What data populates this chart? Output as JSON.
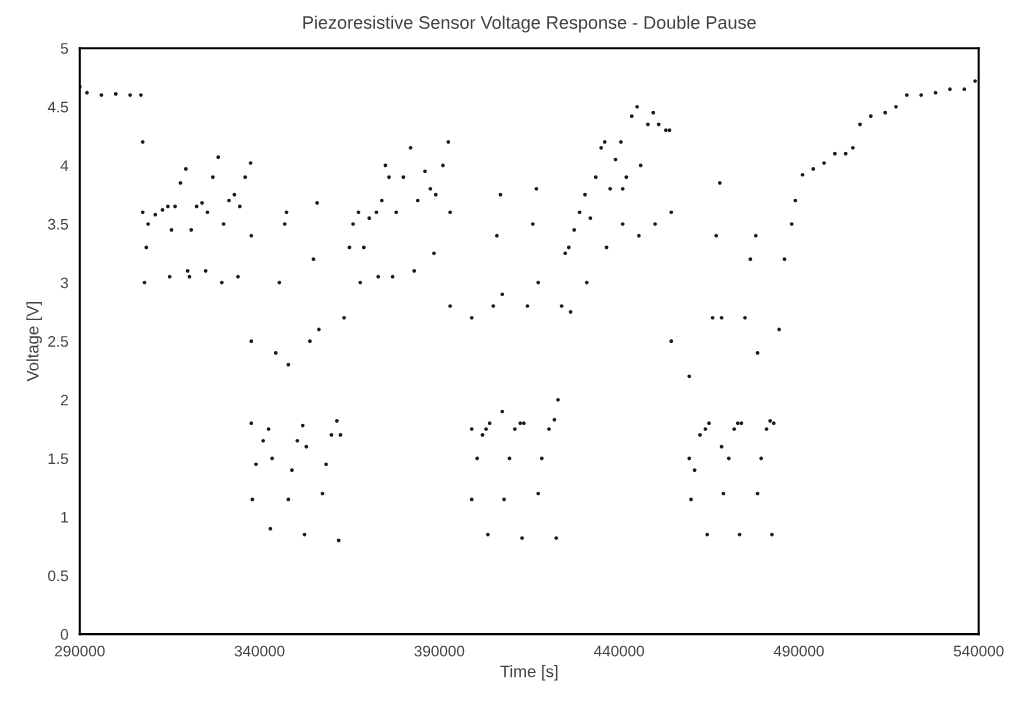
{
  "chart_data": {
    "type": "scatter",
    "title": "Piezoresistive Sensor Voltage Response - Double Pause",
    "xlabel": "Time [s]",
    "ylabel": "Voltage [V]",
    "xlim": [
      290000,
      540000
    ],
    "xticks": [
      290000,
      340000,
      390000,
      440000,
      490000,
      540000
    ],
    "ylim": [
      0,
      5
    ],
    "yticks": [
      0,
      0.5,
      1,
      1.5,
      2,
      2.5,
      3,
      3.5,
      4,
      4.5,
      5
    ],
    "grid": false,
    "marker": "circle",
    "series": [
      {
        "color": "#1a1a1a",
        "x": [
          290000,
          292000,
          296000,
          300000,
          304000,
          307000,
          307500,
          307500,
          308000,
          308500,
          309000,
          311000,
          313000,
          314500,
          315000,
          315500,
          316500,
          318000,
          319500,
          320000,
          320500,
          321000,
          322500,
          324000,
          325000,
          325500,
          327000,
          328500,
          329500,
          330000,
          331500,
          333000,
          334000,
          334500,
          336000,
          337500,
          337700,
          337700,
          337700,
          338000,
          339000,
          341000,
          342500,
          343000,
          343500,
          344500,
          345500,
          347000,
          347500,
          348000,
          348000,
          349000,
          350500,
          352000,
          352500,
          353000,
          354000,
          355000,
          356000,
          356500,
          357500,
          358500,
          360000,
          361500,
          362000,
          362500,
          363500,
          365000,
          366000,
          367500,
          368000,
          369000,
          370500,
          372500,
          373000,
          374000,
          375000,
          376000,
          377000,
          378000,
          380000,
          382000,
          383000,
          384000,
          386000,
          387500,
          388500,
          389000,
          391000,
          392500,
          393000,
          393000,
          399000,
          399000,
          399000,
          400500,
          402000,
          403000,
          403500,
          404000,
          405000,
          406000,
          407000,
          407500,
          407500,
          408000,
          409500,
          411000,
          412500,
          413000,
          413500,
          414500,
          416000,
          417000,
          417500,
          417500,
          418500,
          420500,
          422000,
          422500,
          423000,
          424000,
          425000,
          426000,
          426500,
          427500,
          429000,
          430500,
          431000,
          432000,
          433500,
          435000,
          436000,
          436500,
          437500,
          439000,
          440500,
          441000,
          441000,
          442000,
          443500,
          445000,
          445500,
          446000,
          448000,
          449500,
          450000,
          451000,
          453000,
          454000,
          454500,
          454500,
          459500,
          459500,
          460000,
          461000,
          462500,
          464000,
          464500,
          465000,
          466000,
          467000,
          468000,
          468500,
          468500,
          469000,
          470500,
          472000,
          473000,
          473500,
          474000,
          475000,
          476500,
          478000,
          478500,
          478500,
          479500,
          481000,
          482000,
          482500,
          483000,
          484500,
          486000,
          488000,
          489000,
          491000,
          494000,
          497000,
          500000,
          503000,
          505000,
          507000,
          510000,
          514000,
          517000,
          520000,
          524000,
          528000,
          532000,
          536000,
          539000
        ],
        "values": [
          4.67,
          4.62,
          4.6,
          4.61,
          4.6,
          4.6,
          4.2,
          3.6,
          3.0,
          3.3,
          3.5,
          3.58,
          3.62,
          3.65,
          3.05,
          3.45,
          3.65,
          3.85,
          3.97,
          3.1,
          3.05,
          3.45,
          3.65,
          3.68,
          3.1,
          3.6,
          3.9,
          4.07,
          3.0,
          3.5,
          3.7,
          3.75,
          3.05,
          3.65,
          3.9,
          4.02,
          3.4,
          2.5,
          1.8,
          1.15,
          1.45,
          1.65,
          1.75,
          0.9,
          1.5,
          2.4,
          3.0,
          3.5,
          3.6,
          2.3,
          1.15,
          1.4,
          1.65,
          1.78,
          0.85,
          1.6,
          2.5,
          3.2,
          3.68,
          2.6,
          1.2,
          1.45,
          1.7,
          1.82,
          0.8,
          1.7,
          2.7,
          3.3,
          3.5,
          3.6,
          3.0,
          3.3,
          3.55,
          3.6,
          3.05,
          3.7,
          4.0,
          3.9,
          3.05,
          3.6,
          3.9,
          4.15,
          3.1,
          3.7,
          3.95,
          3.8,
          3.25,
          3.75,
          4.0,
          4.2,
          3.6,
          2.8,
          2.7,
          1.75,
          1.15,
          1.5,
          1.7,
          1.75,
          0.85,
          1.8,
          2.8,
          3.4,
          3.75,
          2.9,
          1.9,
          1.15,
          1.5,
          1.75,
          1.8,
          0.82,
          1.8,
          2.8,
          3.5,
          3.8,
          3.0,
          1.2,
          1.5,
          1.75,
          1.83,
          0.82,
          2.0,
          2.8,
          3.25,
          3.3,
          2.75,
          3.45,
          3.6,
          3.75,
          3.0,
          3.55,
          3.9,
          4.15,
          4.2,
          3.3,
          3.8,
          4.05,
          4.2,
          3.5,
          3.8,
          3.9,
          4.42,
          4.5,
          3.4,
          4.0,
          4.35,
          4.45,
          3.5,
          4.35,
          4.3,
          4.3,
          3.6,
          2.5,
          2.2,
          1.5,
          1.15,
          1.4,
          1.7,
          1.75,
          0.85,
          1.8,
          2.7,
          3.4,
          3.85,
          2.7,
          1.6,
          1.2,
          1.5,
          1.75,
          1.8,
          0.85,
          1.8,
          2.7,
          3.2,
          3.4,
          2.4,
          1.2,
          1.5,
          1.75,
          1.82,
          0.85,
          1.8,
          2.6,
          3.2,
          3.5,
          3.7,
          3.92,
          3.97,
          4.02,
          4.1,
          4.1,
          4.15,
          4.35,
          4.42,
          4.45,
          4.5,
          4.6,
          4.6,
          4.62,
          4.65,
          4.65,
          4.72
        ]
      }
    ]
  }
}
